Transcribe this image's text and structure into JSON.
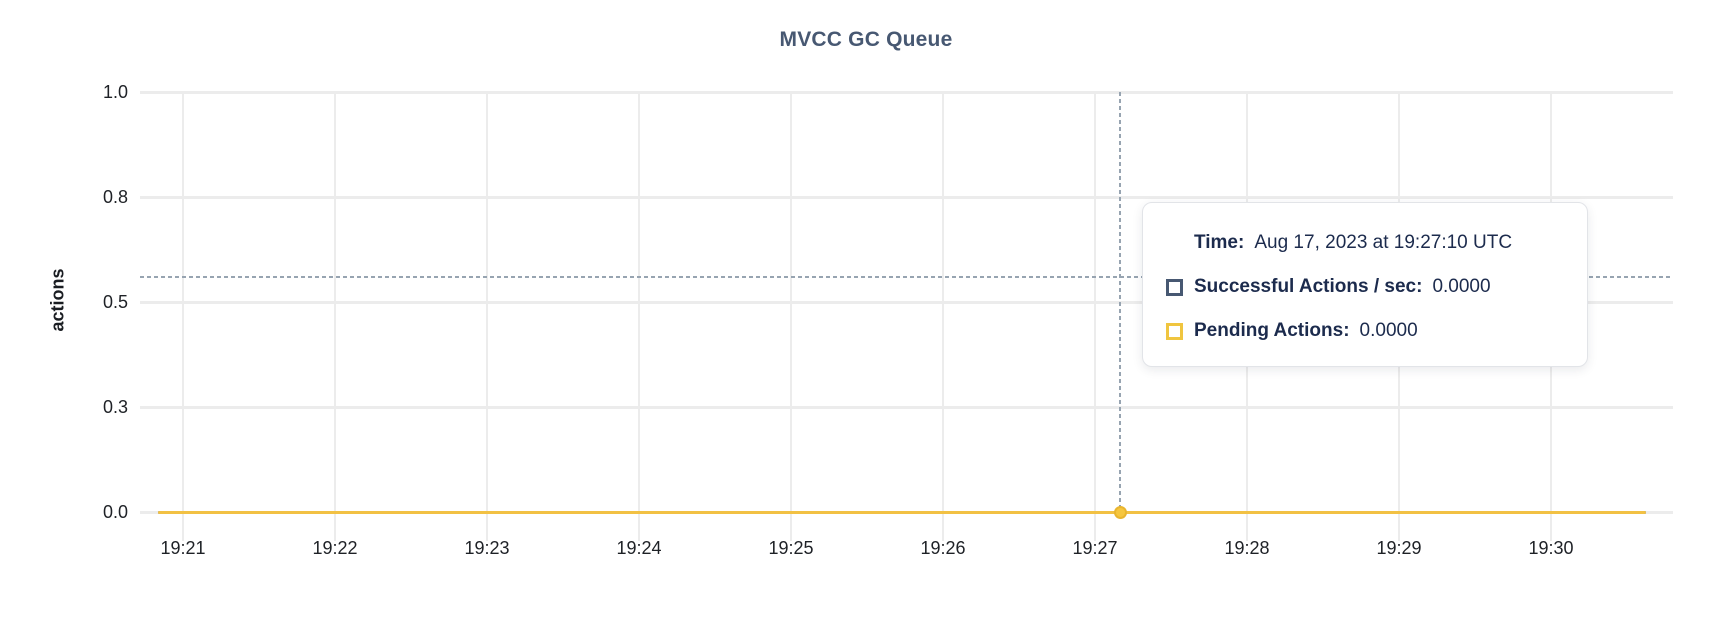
{
  "chart_data": {
    "type": "line",
    "title": "MVCC GC Queue",
    "xlabel": "",
    "ylabel": "actions",
    "x_tick_labels": [
      "19:21",
      "19:22",
      "19:23",
      "19:24",
      "19:25",
      "19:26",
      "19:27",
      "19:28",
      "19:29",
      "19:30"
    ],
    "y_tick_labels": [
      "1.0",
      "0.8",
      "0.5",
      "0.3",
      "0.0"
    ],
    "ylim": [
      0,
      1
    ],
    "grid": true,
    "legend_position": "tooltip",
    "series": [
      {
        "name": "Successful Actions / sec",
        "color": "#475872",
        "values": [
          0,
          0,
          0,
          0,
          0,
          0,
          0,
          0,
          0,
          0
        ]
      },
      {
        "name": "Pending Actions",
        "color": "#f2c144",
        "values": [
          0,
          0,
          0,
          0,
          0,
          0,
          0,
          0,
          0,
          0
        ]
      }
    ],
    "hover_point": {
      "time": "19:27:10",
      "value": 0.0
    }
  },
  "tooltip": {
    "time_label": "Time:",
    "time_value": "Aug 17, 2023 at 19:27:10 UTC",
    "rows": [
      {
        "label": "Successful Actions / sec:",
        "value": "0.0000",
        "swatch_color": "#475872"
      },
      {
        "label": "Pending Actions:",
        "value": "0.0000",
        "swatch_color": "#f0c53f"
      }
    ]
  },
  "colors": {
    "title": "#475872",
    "axis_text": "#1e2126",
    "grid": "#ececec",
    "crosshair": "#97a4b1",
    "tooltip_text": "#1c2b4d",
    "dot_fill": "#f6c63f",
    "dot_stroke": "#e9b52f",
    "background": "#ffffff"
  }
}
